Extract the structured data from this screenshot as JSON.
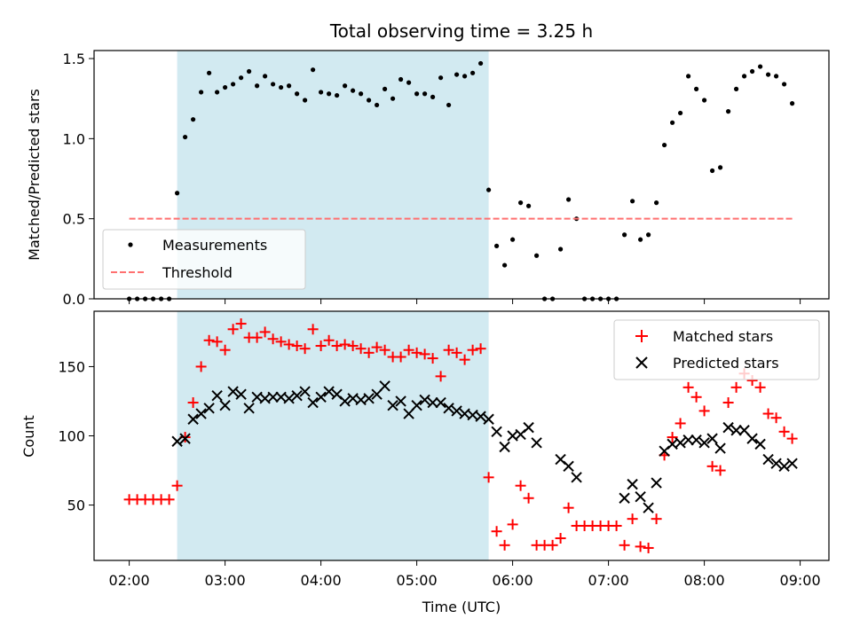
{
  "chart_data": [
    {
      "type": "scatter",
      "title": "Total observing time = 3.25 h",
      "ylabel": "Matched/Predicted stars",
      "xlabel": "",
      "xlim": [
        "01:38",
        "09:18"
      ],
      "ylim": [
        0,
        1.55
      ],
      "yticks": [
        0.0,
        0.5,
        1.0,
        1.5
      ],
      "ytick_labels": [
        "0.0",
        "0.5",
        "1.0",
        "1.5"
      ],
      "shaded_span": [
        "02:30",
        "05:45"
      ],
      "shade_color": "#add8e6",
      "legend_position": "lower-left",
      "series": [
        {
          "name": "Measurements",
          "marker": "dot",
          "color": "#000000",
          "x": [
            "02:00",
            "02:05",
            "02:10",
            "02:15",
            "02:20",
            "02:25",
            "02:30",
            "02:35",
            "02:40",
            "02:45",
            "02:50",
            "02:55",
            "03:00",
            "03:05",
            "03:10",
            "03:15",
            "03:20",
            "03:25",
            "03:30",
            "03:35",
            "03:40",
            "03:45",
            "03:50",
            "03:55",
            "04:00",
            "04:05",
            "04:10",
            "04:15",
            "04:20",
            "04:25",
            "04:30",
            "04:35",
            "04:40",
            "04:45",
            "04:50",
            "04:55",
            "05:00",
            "05:05",
            "05:10",
            "05:15",
            "05:20",
            "05:25",
            "05:30",
            "05:35",
            "05:40",
            "05:45",
            "05:50",
            "05:55",
            "06:00",
            "06:05",
            "06:10",
            "06:15",
            "06:20",
            "06:25",
            "06:30",
            "06:35",
            "06:40",
            "06:45",
            "06:50",
            "06:55",
            "07:00",
            "07:05",
            "07:10",
            "07:15",
            "07:20",
            "07:25",
            "07:30",
            "07:35",
            "07:40",
            "07:45",
            "07:50",
            "07:55",
            "08:00",
            "08:05",
            "08:10",
            "08:15",
            "08:20",
            "08:25",
            "08:30",
            "08:35",
            "08:40",
            "08:45",
            "08:50",
            "08:55"
          ],
          "y": [
            0,
            0,
            0,
            0,
            0,
            0,
            0.66,
            1.01,
            1.12,
            1.29,
            1.41,
            1.29,
            1.32,
            1.34,
            1.38,
            1.42,
            1.33,
            1.39,
            1.34,
            1.32,
            1.33,
            1.28,
            1.24,
            1.43,
            1.29,
            1.28,
            1.27,
            1.33,
            1.3,
            1.28,
            1.24,
            1.21,
            1.31,
            1.25,
            1.37,
            1.35,
            1.28,
            1.28,
            1.26,
            1.38,
            1.21,
            1.4,
            1.39,
            1.41,
            1.47,
            0.68,
            0.33,
            0.21,
            0.37,
            0.6,
            0.58,
            0.27,
            0,
            0,
            0.31,
            0.62,
            0.5,
            0,
            0,
            0,
            0,
            0,
            0.4,
            0.61,
            0.37,
            0.4,
            0.6,
            0.96,
            1.1,
            1.16,
            1.39,
            1.31,
            1.24,
            0.8,
            0.82,
            1.17,
            1.31,
            1.39,
            1.42,
            1.45,
            1.4,
            1.39,
            1.34,
            1.22
          ]
        },
        {
          "name": "Threshold",
          "style": "dashed",
          "color": "#ff7070",
          "x": [
            "02:00",
            "08:55"
          ],
          "y": [
            0.5,
            0.5
          ]
        }
      ]
    },
    {
      "type": "scatter",
      "title": "",
      "ylabel": "Count",
      "xlabel": "Time (UTC)",
      "xlim": [
        "01:38",
        "09:18"
      ],
      "ylim": [
        10,
        190
      ],
      "yticks": [
        50,
        100,
        150
      ],
      "xticks": [
        "02:00",
        "03:00",
        "04:00",
        "05:00",
        "06:00",
        "07:00",
        "08:00",
        "09:00"
      ],
      "shaded_span": [
        "02:30",
        "05:45"
      ],
      "shade_color": "#add8e6",
      "legend_position": "upper-right",
      "series": [
        {
          "name": "Matched stars",
          "marker": "plus",
          "color": "#ff0000",
          "x": [
            "02:00",
            "02:05",
            "02:10",
            "02:15",
            "02:20",
            "02:25",
            "02:30",
            "02:35",
            "02:40",
            "02:45",
            "02:50",
            "02:55",
            "03:00",
            "03:05",
            "03:10",
            "03:15",
            "03:20",
            "03:25",
            "03:30",
            "03:35",
            "03:40",
            "03:45",
            "03:50",
            "03:55",
            "04:00",
            "04:05",
            "04:10",
            "04:15",
            "04:20",
            "04:25",
            "04:30",
            "04:35",
            "04:40",
            "04:45",
            "04:50",
            "04:55",
            "05:00",
            "05:05",
            "05:10",
            "05:15",
            "05:20",
            "05:25",
            "05:30",
            "05:35",
            "05:40",
            "05:45",
            "05:50",
            "05:55",
            "06:00",
            "06:05",
            "06:10",
            "06:15",
            "06:20",
            "06:25",
            "06:30",
            "06:35",
            "06:40",
            "06:45",
            "06:50",
            "06:55",
            "07:00",
            "07:05",
            "07:10",
            "07:15",
            "07:20",
            "07:25",
            "07:30",
            "07:35",
            "07:40",
            "07:45",
            "07:50",
            "07:55",
            "08:00",
            "08:05",
            "08:10",
            "08:15",
            "08:20",
            "08:25",
            "08:30",
            "08:35",
            "08:40",
            "08:45",
            "08:50",
            "08:55"
          ],
          "y": [
            54,
            54,
            54,
            54,
            54,
            54,
            64,
            99,
            124,
            150,
            169,
            168,
            162,
            177,
            181,
            171,
            171,
            175,
            170,
            168,
            166,
            165,
            163,
            177,
            165,
            169,
            165,
            166,
            165,
            163,
            160,
            164,
            162,
            157,
            157,
            162,
            160,
            159,
            156,
            143,
            162,
            160,
            155,
            162,
            163,
            70,
            31,
            21,
            36,
            64,
            55,
            21,
            21,
            21,
            26,
            48,
            35,
            35,
            35,
            35,
            35,
            35,
            21,
            40,
            20,
            19,
            40,
            86,
            99,
            109,
            135,
            128,
            118,
            78,
            75,
            124,
            135,
            145,
            140,
            135,
            116,
            113,
            103,
            98
          ]
        },
        {
          "name": "Predicted stars",
          "marker": "x",
          "color": "#000000",
          "x": [
            "02:30",
            "02:35",
            "02:40",
            "02:45",
            "02:50",
            "02:55",
            "03:00",
            "03:05",
            "03:10",
            "03:15",
            "03:20",
            "03:25",
            "03:30",
            "03:35",
            "03:40",
            "03:45",
            "03:50",
            "03:55",
            "04:00",
            "04:05",
            "04:10",
            "04:15",
            "04:20",
            "04:25",
            "04:30",
            "04:35",
            "04:40",
            "04:45",
            "04:50",
            "04:55",
            "05:00",
            "05:05",
            "05:10",
            "05:15",
            "05:20",
            "05:25",
            "05:30",
            "05:35",
            "05:40",
            "05:45",
            "05:50",
            "05:55",
            "06:00",
            "06:05",
            "06:10",
            "06:15",
            "06:30",
            "06:35",
            "06:40",
            "07:10",
            "07:15",
            "07:20",
            "07:25",
            "07:30",
            "07:35",
            "07:40",
            "07:45",
            "07:50",
            "07:55",
            "08:00",
            "08:05",
            "08:10",
            "08:15",
            "08:20",
            "08:25",
            "08:30",
            "08:35",
            "08:40",
            "08:45",
            "08:50",
            "08:55"
          ],
          "y": [
            96,
            98,
            112,
            116,
            120,
            129,
            122,
            132,
            130,
            120,
            128,
            127,
            128,
            128,
            127,
            129,
            132,
            124,
            128,
            132,
            130,
            125,
            127,
            126,
            127,
            130,
            136,
            122,
            125,
            116,
            122,
            126,
            124,
            124,
            120,
            118,
            116,
            115,
            114,
            112,
            103,
            92,
            100,
            101,
            106,
            95,
            83,
            78,
            70,
            55,
            65,
            56,
            48,
            66,
            89,
            94,
            95,
            97,
            97,
            95,
            98,
            91,
            106,
            104,
            104,
            98,
            94,
            83,
            80,
            78,
            80
          ]
        }
      ]
    }
  ]
}
